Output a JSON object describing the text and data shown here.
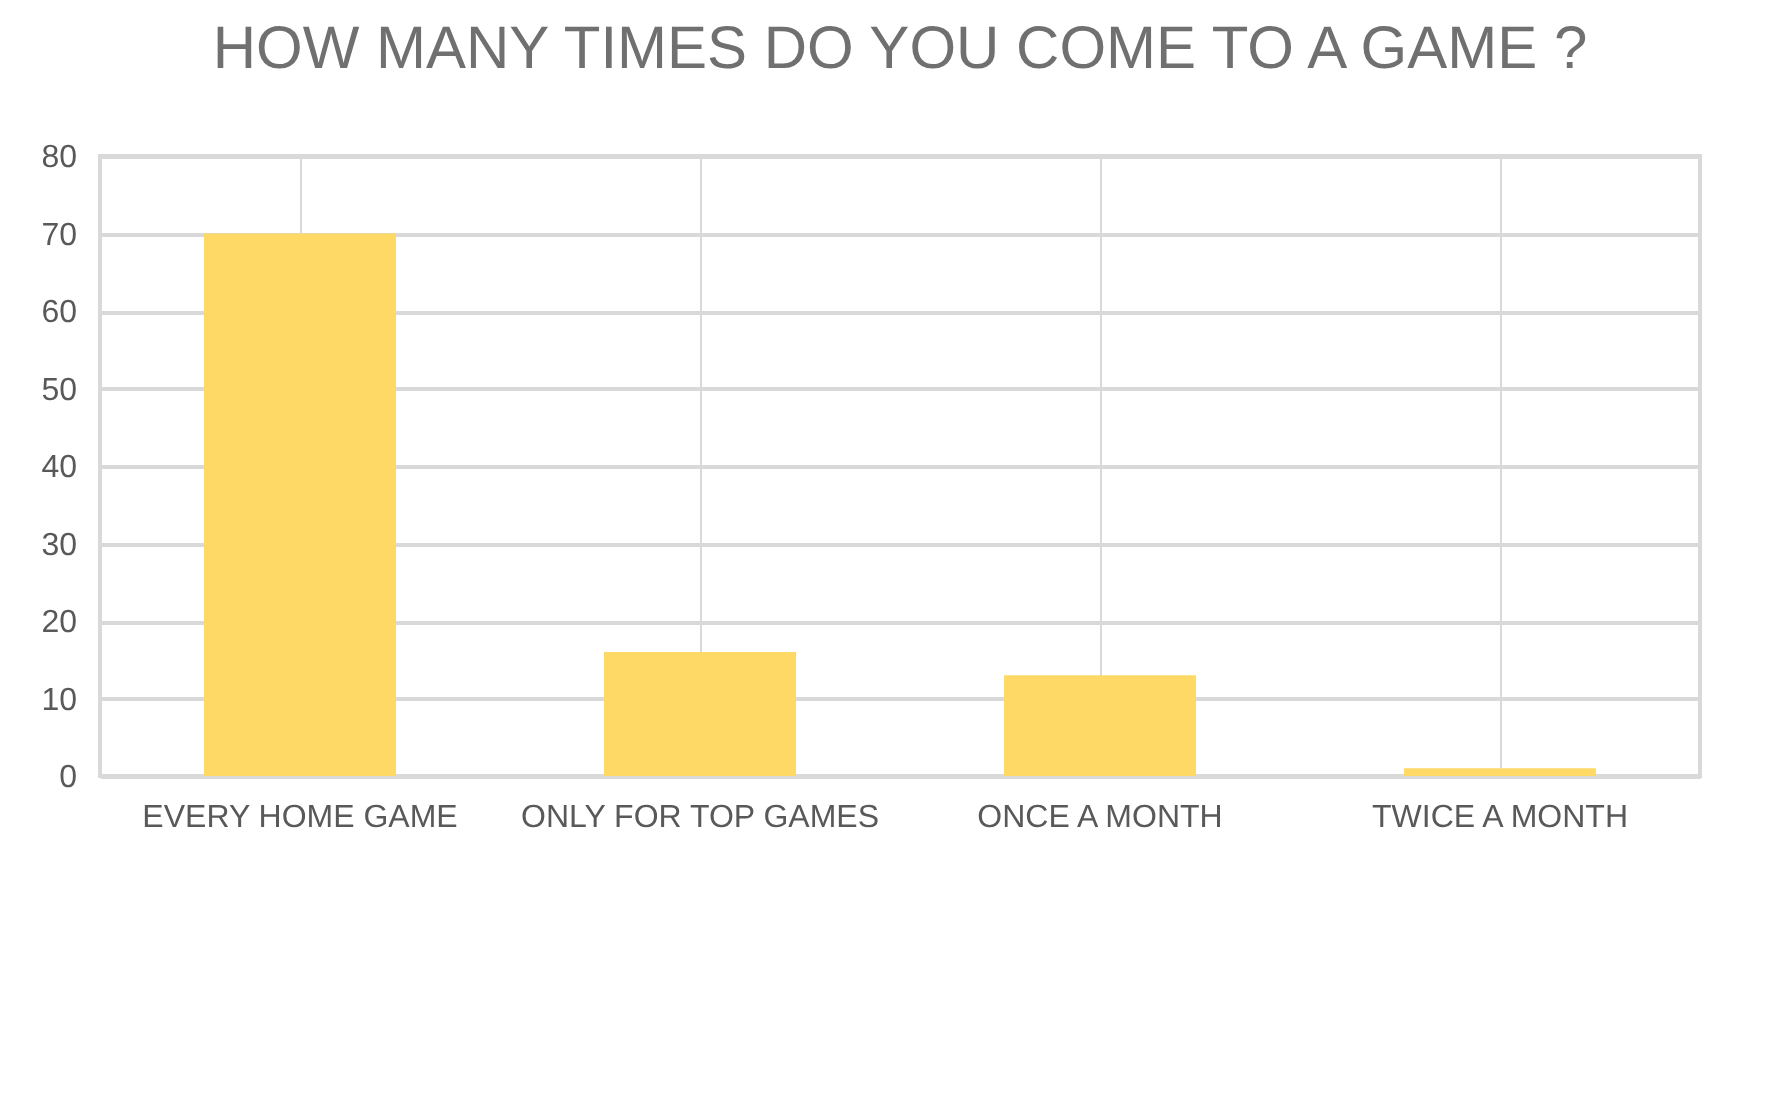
{
  "chart_data": {
    "type": "bar",
    "title": "HOW MANY TIMES DO YOU COME TO A GAME ?",
    "categories": [
      "EVERY HOME GAME",
      "ONLY FOR TOP GAMES",
      "ONCE A MONTH",
      "TWICE A MONTH"
    ],
    "values": [
      70,
      16,
      13,
      1
    ],
    "color": "#ffd966",
    "ylim": [
      0,
      80
    ],
    "yticks": [
      0,
      10,
      20,
      30,
      40,
      50,
      60,
      70,
      80
    ],
    "grid": true
  }
}
